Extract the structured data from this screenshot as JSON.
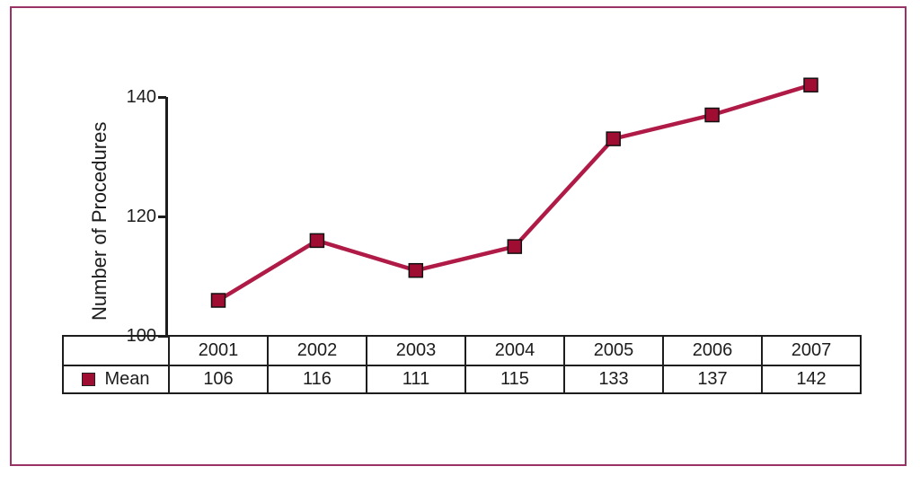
{
  "frame": {
    "border_color": "#993366",
    "background": "#ffffff"
  },
  "chart_data": {
    "type": "line",
    "title": "",
    "ylabel": "Number of Procedures",
    "xlabel": "",
    "x": [
      "2001",
      "2002",
      "2003",
      "2004",
      "2005",
      "2006",
      "2007"
    ],
    "series": [
      {
        "name": "Mean",
        "values": [
          106,
          116,
          111,
          115,
          133,
          137,
          142
        ]
      }
    ],
    "ylim": [
      100,
      140
    ],
    "yticks_top_to_bottom": [
      "140",
      "120",
      "100"
    ],
    "grid": false,
    "legend_position": "bottom-table-row",
    "line_color": "#b01a46",
    "marker_color": "#a00d33",
    "marker_edge_color": "#111111",
    "marker_shape": "square"
  }
}
